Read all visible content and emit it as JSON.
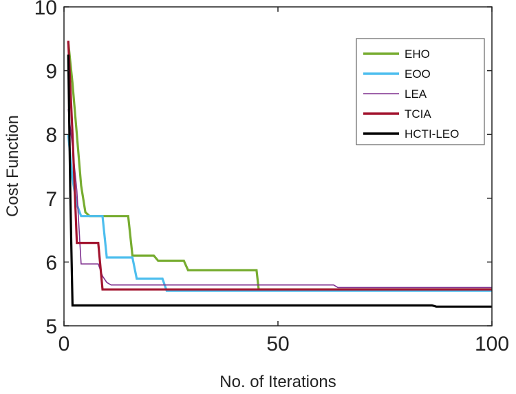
{
  "chart_data": {
    "type": "line",
    "title": "",
    "xlabel": "No. of Iterations",
    "ylabel": "Cost Function",
    "xlim": [
      0,
      100
    ],
    "ylim": [
      5,
      10
    ],
    "xticks": [
      0,
      50,
      100
    ],
    "yticks": [
      5,
      6,
      7,
      8,
      9,
      10
    ],
    "grid": false,
    "legend_position": "top-right",
    "series": [
      {
        "name": "EHO",
        "color": "#77ac30",
        "x": [
          1,
          2,
          3,
          4,
          5,
          6,
          15,
          16,
          21,
          22,
          28,
          29,
          45,
          45.5,
          100
        ],
        "y": [
          9.45,
          8.8,
          8.0,
          7.2,
          6.78,
          6.72,
          6.72,
          6.1,
          6.1,
          6.02,
          6.02,
          5.87,
          5.87,
          5.57,
          5.57
        ]
      },
      {
        "name": "EOO",
        "color": "#4dbeee",
        "x": [
          1,
          2,
          3,
          4,
          9,
          10,
          16,
          17,
          23,
          24,
          100
        ],
        "y": [
          8.0,
          7.3,
          6.9,
          6.72,
          6.72,
          6.07,
          6.07,
          5.74,
          5.74,
          5.55,
          5.55
        ]
      },
      {
        "name": "LEA",
        "color": "#7e2f8e",
        "x": [
          1,
          2,
          3,
          4,
          8,
          9,
          10,
          11,
          63,
          64,
          100
        ],
        "y": [
          8.4,
          7.8,
          7.12,
          5.97,
          5.97,
          5.78,
          5.68,
          5.64,
          5.64,
          5.6,
          5.6
        ]
      },
      {
        "name": "TCIA",
        "color": "#a2142f",
        "x": [
          1,
          2,
          3,
          8,
          9,
          100
        ],
        "y": [
          9.47,
          8.0,
          6.3,
          6.3,
          5.57,
          5.57
        ]
      },
      {
        "name": "HCTI-LEO",
        "color": "#000000",
        "x": [
          1,
          1.5,
          2,
          86,
          87,
          100
        ],
        "y": [
          9.25,
          7.0,
          5.32,
          5.32,
          5.3,
          5.3
        ]
      }
    ]
  }
}
